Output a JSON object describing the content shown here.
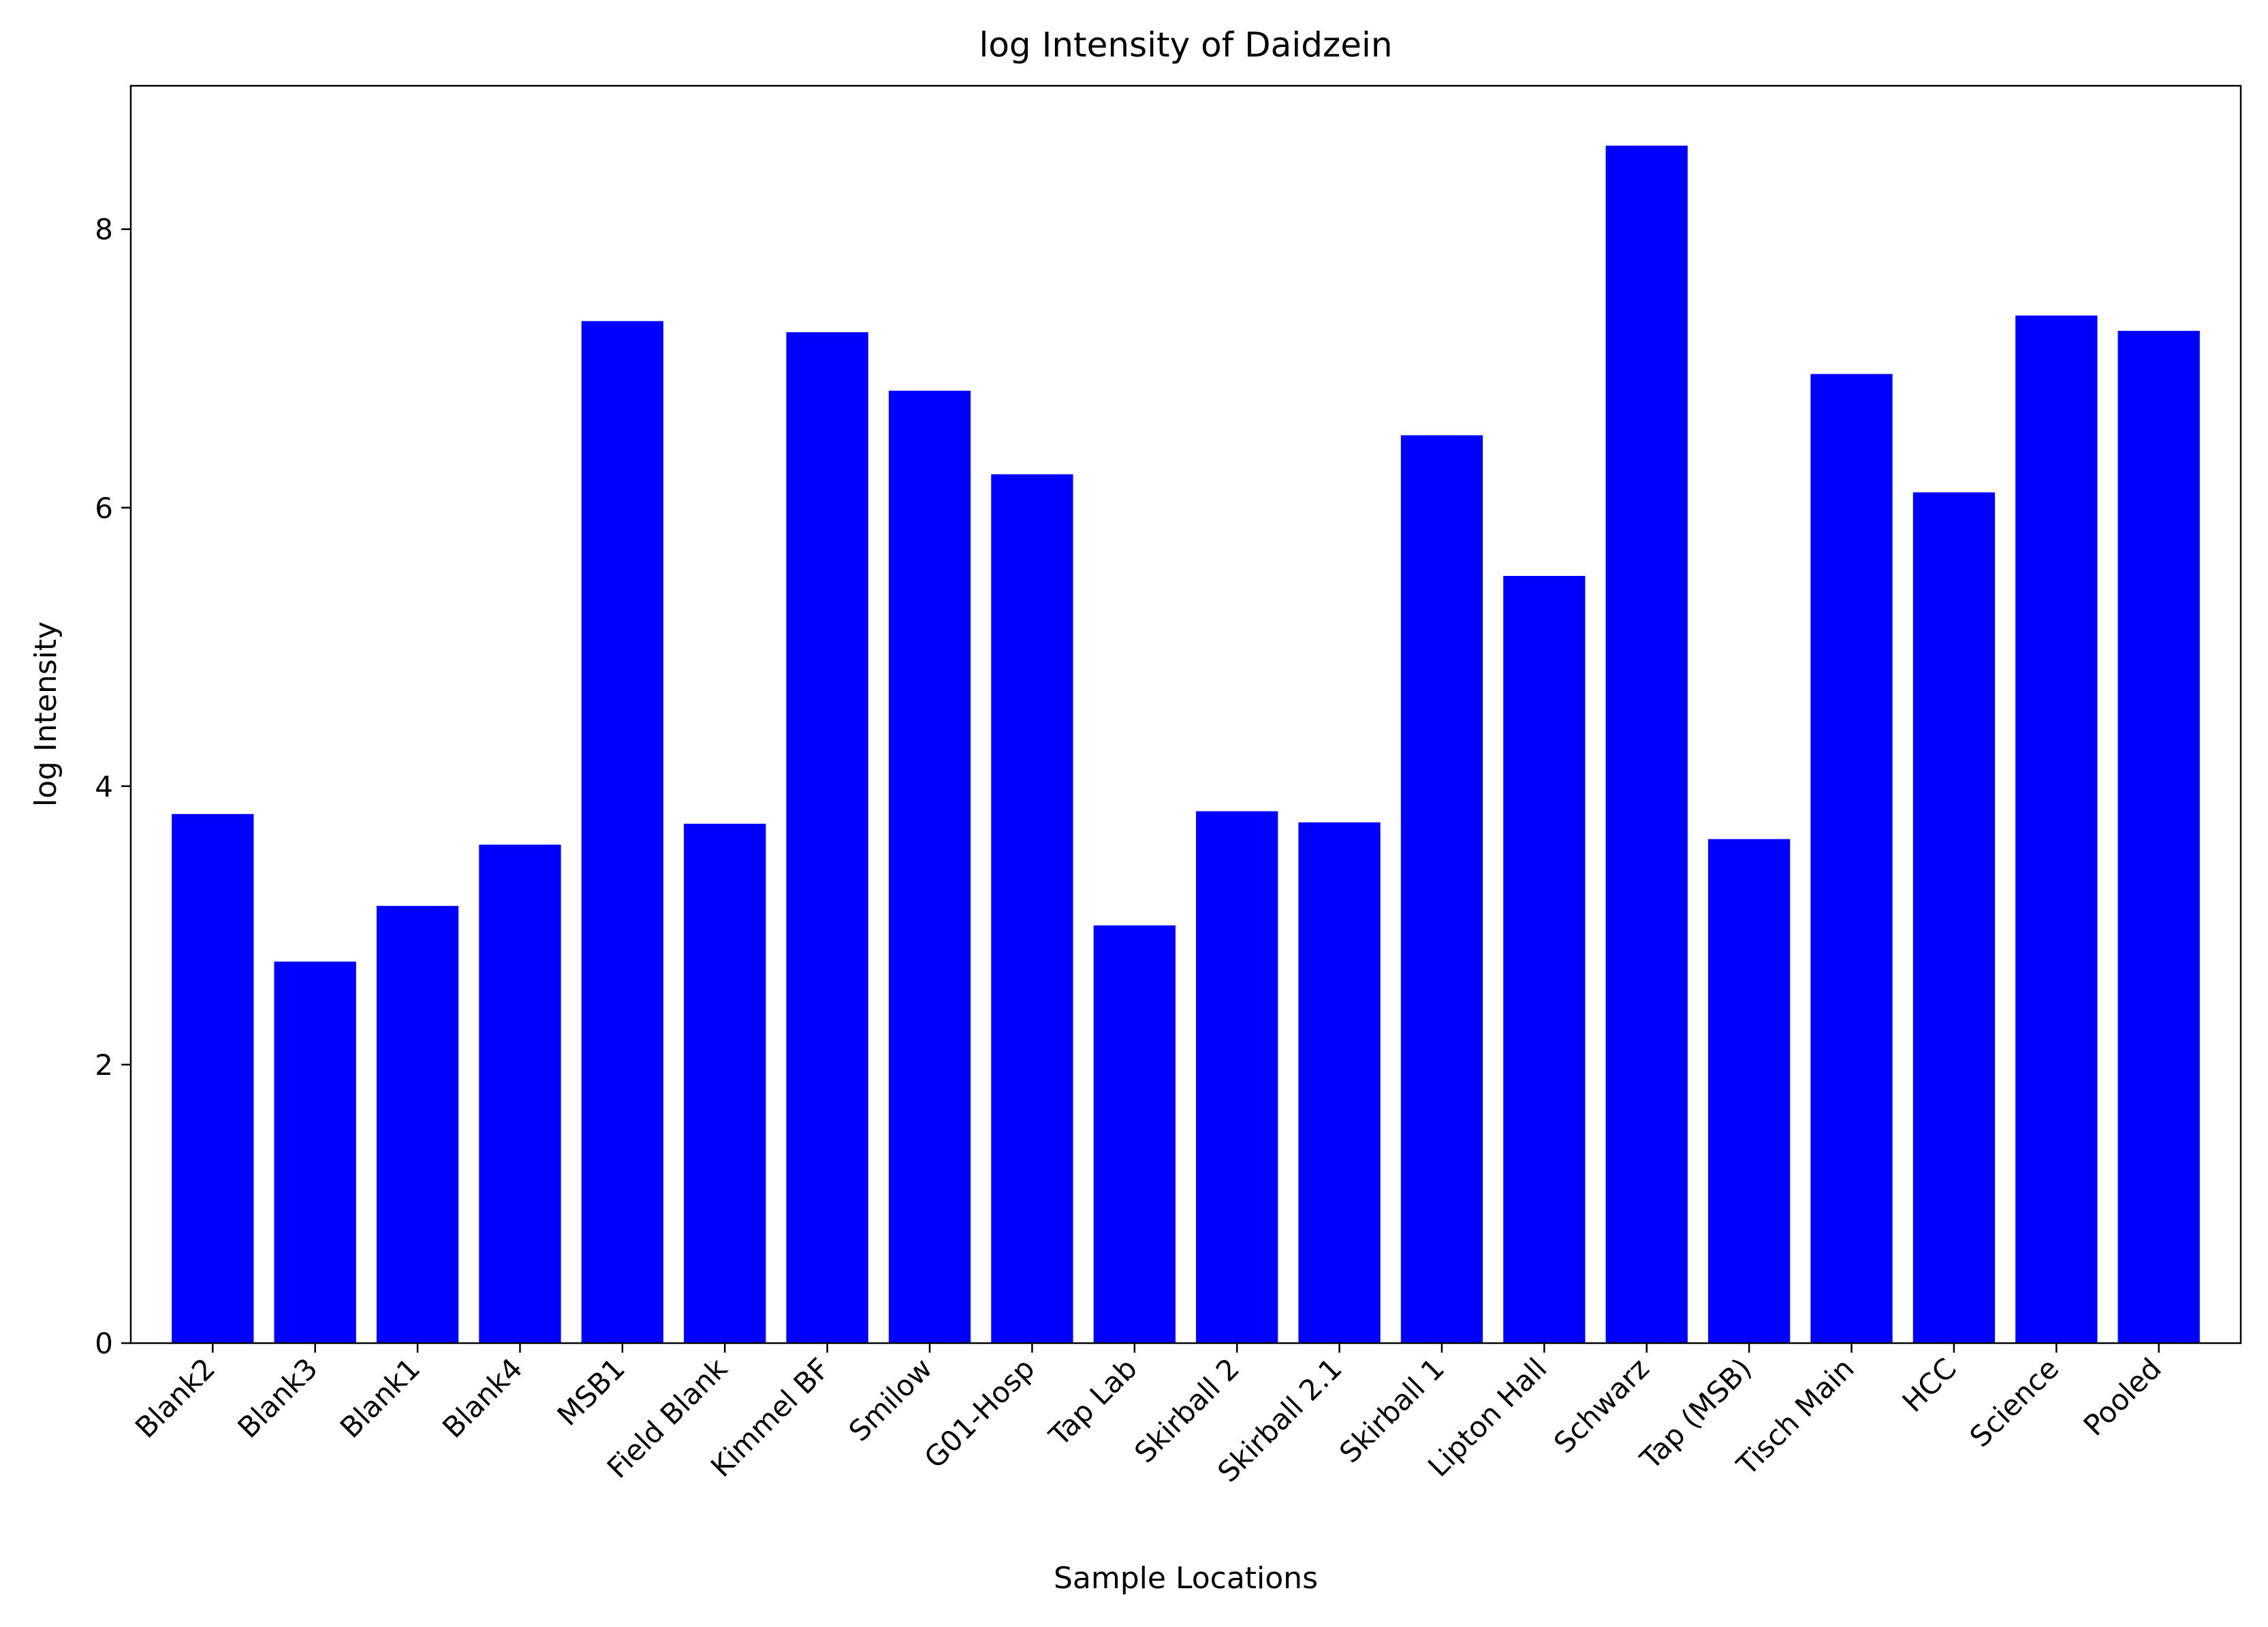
{
  "chart_data": {
    "type": "bar",
    "title": "log Intensity of Daidzein",
    "xlabel": "Sample Locations",
    "ylabel": "log Intensity",
    "categories": [
      "Blank2",
      "Blank3",
      "Blank1",
      "Blank4",
      "MSB1",
      "Field Blank",
      "Kimmel BF",
      "Smilow",
      "G01-Hosp",
      "Tap Lab",
      "Skirball 2",
      "Skirball 2.1",
      "Skirball 1",
      "Lipton Hall",
      "Schwarz",
      "Tap (MSB)",
      "Tisch Main",
      "HCC",
      "Science",
      "Pooled"
    ],
    "values": [
      3.8,
      2.74,
      3.14,
      3.58,
      7.34,
      3.73,
      7.26,
      6.84,
      6.24,
      3.0,
      3.82,
      3.74,
      6.52,
      5.51,
      8.6,
      3.62,
      6.96,
      6.11,
      7.38,
      7.27
    ],
    "yticks": [
      0,
      2,
      4,
      6,
      8
    ],
    "ylim": [
      0,
      9.03
    ],
    "grid": false,
    "bar_color": "#0000ff"
  }
}
